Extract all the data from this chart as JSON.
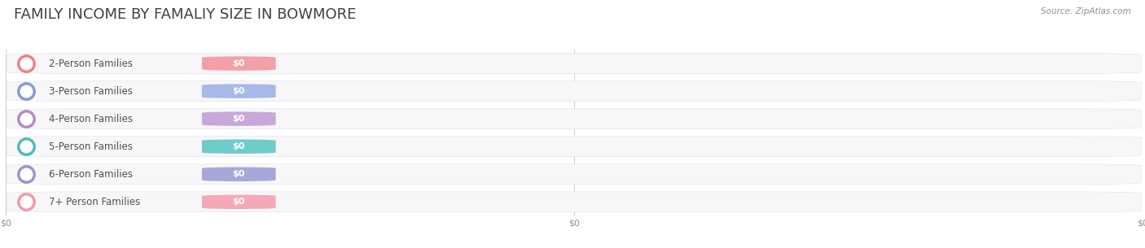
{
  "title": "FAMILY INCOME BY FAMALIY SIZE IN BOWMORE",
  "source": "Source: ZipAtlas.com",
  "categories": [
    "2-Person Families",
    "3-Person Families",
    "4-Person Families",
    "5-Person Families",
    "6-Person Families",
    "7+ Person Families"
  ],
  "values": [
    0,
    0,
    0,
    0,
    0,
    0
  ],
  "bar_colors": [
    "#f4a0a8",
    "#a8b8e8",
    "#c8a8d8",
    "#70ccc8",
    "#a8a8d8",
    "#f4a8b8"
  ],
  "dot_colors": [
    "#f08088",
    "#8898d8",
    "#b888c8",
    "#50bcb8",
    "#9898c8",
    "#f498a8"
  ],
  "bar_bg_color": "#efefef",
  "bar_bg_color2": "#f7f7fa",
  "background_color": "#ffffff",
  "title_color": "#404040",
  "label_color": "#505050",
  "value_color": "#ffffff",
  "source_color": "#909090",
  "tick_label_color": "#909090",
  "bar_height": 0.72,
  "title_fontsize": 13,
  "label_fontsize": 8.5,
  "value_fontsize": 8,
  "source_fontsize": 7.5
}
